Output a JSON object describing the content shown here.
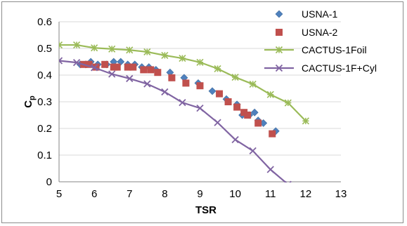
{
  "chart_data": {
    "type": "scatter",
    "xlabel": "TSR",
    "ylabel": "Cp",
    "ylabel_main": "C",
    "ylabel_sub": "p",
    "xlim": [
      5,
      13
    ],
    "ylim": [
      0,
      0.6
    ],
    "x_ticks": [
      "5",
      "6",
      "7",
      "8",
      "9",
      "10",
      "11",
      "12",
      "13"
    ],
    "y_ticks": [
      "0",
      "0.1",
      "0.2",
      "0.3",
      "0.4",
      "0.5",
      "0.6"
    ],
    "grid": "horizontal",
    "legend_position": "top-right",
    "series": [
      {
        "name": "USNA-1",
        "style": "markers",
        "marker": "diamond",
        "color": "#4f81bd",
        "x": [
          5.6,
          5.75,
          5.9,
          6.1,
          6.35,
          6.55,
          6.75,
          6.95,
          7.15,
          7.35,
          7.55,
          7.75,
          8.15,
          8.55,
          8.95,
          9.35,
          9.75,
          10.05,
          10.2,
          10.4,
          10.55,
          10.65,
          10.8,
          11.15
        ],
        "y": [
          0.44,
          0.44,
          0.45,
          0.44,
          0.44,
          0.45,
          0.45,
          0.44,
          0.44,
          0.43,
          0.43,
          0.42,
          0.41,
          0.39,
          0.37,
          0.34,
          0.31,
          0.29,
          0.25,
          0.25,
          0.26,
          0.23,
          0.22,
          0.19
        ]
      },
      {
        "name": "USNA-2",
        "style": "markers",
        "marker": "square",
        "color": "#c0504d",
        "x": [
          5.7,
          5.85,
          6.05,
          6.3,
          6.55,
          6.65,
          6.95,
          7.1,
          7.4,
          7.6,
          7.8,
          8.2,
          8.6,
          9.0,
          9.55,
          9.8,
          10.05,
          10.25,
          10.35,
          10.65,
          11.05
        ],
        "y": [
          0.44,
          0.44,
          0.43,
          0.44,
          0.43,
          0.43,
          0.43,
          0.43,
          0.42,
          0.42,
          0.41,
          0.39,
          0.37,
          0.36,
          0.33,
          0.3,
          0.28,
          0.26,
          0.25,
          0.22,
          0.18
        ]
      },
      {
        "name": "CACTUS-1Foil",
        "style": "line-markers",
        "marker": "star",
        "color": "#9bbb59",
        "x": [
          5.0,
          5.5,
          6.0,
          6.5,
          7.0,
          7.5,
          8.0,
          8.5,
          9.0,
          9.5,
          10.0,
          10.5,
          11.0,
          11.5,
          12.0
        ],
        "y": [
          0.513,
          0.513,
          0.502,
          0.498,
          0.494,
          0.487,
          0.474,
          0.463,
          0.448,
          0.424,
          0.392,
          0.366,
          0.327,
          0.296,
          0.228
        ]
      },
      {
        "name": "CACTUS-1F+Cyl",
        "style": "line-markers",
        "marker": "x",
        "color": "#8064a2",
        "x": [
          5.0,
          5.5,
          6.0,
          6.5,
          7.0,
          7.5,
          8.0,
          8.5,
          9.0,
          9.5,
          10.0,
          10.5,
          11.0,
          11.5
        ],
        "y": [
          0.454,
          0.447,
          0.428,
          0.404,
          0.387,
          0.367,
          0.337,
          0.297,
          0.276,
          0.222,
          0.158,
          0.116,
          0.046,
          -0.01
        ]
      }
    ]
  }
}
